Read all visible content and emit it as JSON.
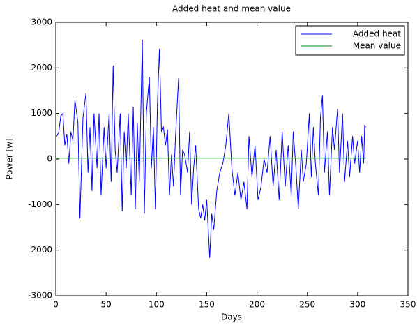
{
  "chart_data": {
    "type": "line",
    "title": "Added heat and mean value",
    "x_label": "Days",
    "y_label": "Power [w]",
    "xlim": [
      0,
      350
    ],
    "ylim": [
      -3000,
      3000
    ],
    "xticks": [
      0,
      50,
      100,
      150,
      200,
      250,
      300,
      350
    ],
    "yticks": [
      -3000,
      -2000,
      -1000,
      0,
      1000,
      2000,
      3000
    ],
    "grid": false,
    "legend": "top-right",
    "series": [
      {
        "name": "Added heat",
        "color": "#0000ff",
        "x": [
          1,
          3,
          5,
          7,
          9,
          11,
          13,
          15,
          17,
          19,
          22,
          24,
          27,
          30,
          32,
          34,
          36,
          38,
          41,
          43,
          45,
          48,
          50,
          53,
          55,
          57,
          59,
          61,
          64,
          66,
          68,
          70,
          72,
          75,
          77,
          79,
          81,
          83,
          86,
          88,
          90,
          93,
          95,
          97,
          99,
          101,
          103,
          105,
          107,
          109,
          111,
          113,
          115,
          117,
          119,
          122,
          124,
          126,
          128,
          131,
          133,
          135,
          137,
          139,
          142,
          144,
          146,
          148,
          150,
          153,
          155,
          157,
          160,
          163,
          166,
          169,
          172,
          175,
          178,
          181,
          184,
          187,
          190,
          192,
          195,
          198,
          201,
          204,
          207,
          210,
          213,
          216,
          219,
          222,
          225,
          228,
          231,
          234,
          236,
          239,
          241,
          244,
          246,
          249,
          252,
          254,
          256,
          258,
          261,
          263,
          265,
          267,
          270,
          272,
          275,
          277,
          280,
          282,
          285,
          287,
          290,
          292,
          295,
          297,
          300,
          302,
          304,
          306,
          307,
          308
        ],
        "values": [
          500,
          600,
          950,
          1000,
          300,
          550,
          -100,
          600,
          400,
          1300,
          800,
          -1300,
          900,
          1450,
          -300,
          700,
          -700,
          1000,
          -200,
          1000,
          -800,
          700,
          -200,
          1000,
          -500,
          2050,
          200,
          -300,
          1000,
          -1150,
          600,
          -200,
          1000,
          -800,
          1150,
          -1100,
          800,
          -500,
          2620,
          -1200,
          1000,
          1800,
          -200,
          700,
          -1100,
          1200,
          2420,
          600,
          700,
          300,
          650,
          -800,
          100,
          -600,
          500,
          1770,
          -800,
          200,
          100,
          -300,
          600,
          -1000,
          -200,
          300,
          -1100,
          -1300,
          -1000,
          -1350,
          -900,
          -2170,
          -1200,
          -1550,
          -700,
          -300,
          -100,
          300,
          1000,
          -200,
          -800,
          -300,
          -900,
          -500,
          -1100,
          500,
          -400,
          300,
          -900,
          -600,
          0,
          -300,
          500,
          -600,
          200,
          -900,
          600,
          -600,
          300,
          -800,
          600,
          -300,
          -1100,
          200,
          -500,
          -100,
          1000,
          -400,
          700,
          -100,
          -800,
          900,
          1400,
          -300,
          600,
          -800,
          700,
          200,
          1100,
          -300,
          1000,
          -500,
          400,
          -400,
          500,
          -100,
          400,
          -300,
          500,
          -100,
          750,
          700
        ]
      },
      {
        "name": "Mean value",
        "color": "#008000",
        "x": [
          1,
          308
        ],
        "values": [
          20,
          20
        ]
      }
    ]
  }
}
